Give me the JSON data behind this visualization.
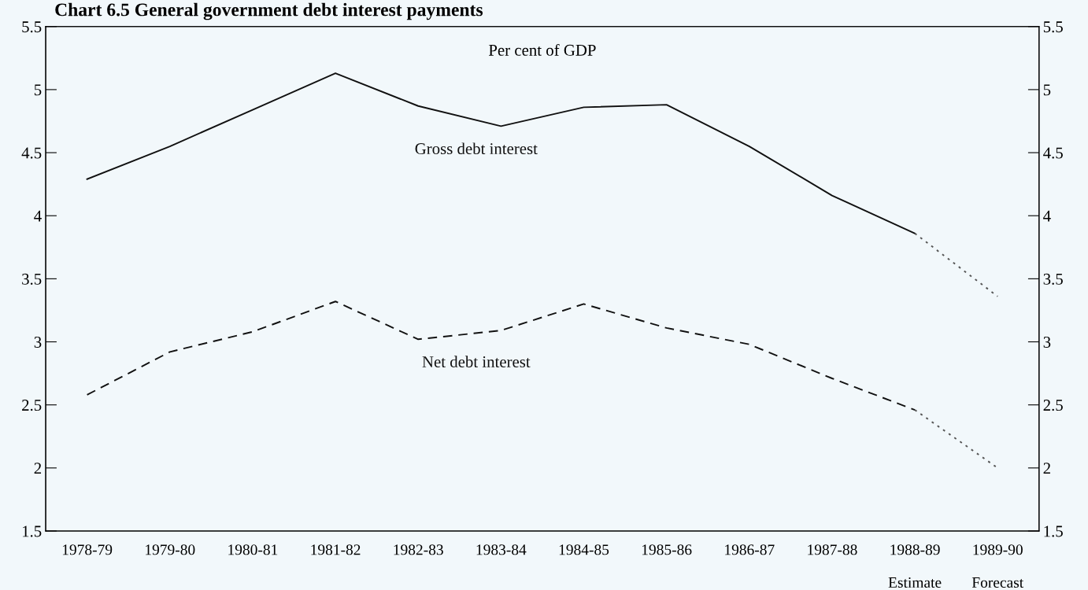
{
  "chart_data": {
    "type": "line",
    "title": "Chart 6.5 General government debt interest payments",
    "categories": [
      "1978-79",
      "1979-80",
      "1980-81",
      "1981-82",
      "1982-83",
      "1983-84",
      "1984-85",
      "1985-86",
      "1986-87",
      "1987-88",
      "1988-89",
      "1989-90"
    ],
    "series": [
      {
        "name": "Gross debt interest",
        "color": "#111111",
        "line_style": "solid",
        "values": [
          4.29,
          4.55,
          4.84,
          5.13,
          4.87,
          4.71,
          4.86,
          4.88,
          4.55,
          4.16,
          3.86,
          null
        ]
      },
      {
        "color": "#555555",
        "line_style": "dotted",
        "values": [
          null,
          null,
          null,
          null,
          null,
          null,
          null,
          null,
          null,
          null,
          3.86,
          3.36
        ]
      },
      {
        "name": "Net debt interest",
        "color": "#111111",
        "line_style": "dashed",
        "values": [
          2.58,
          2.92,
          3.08,
          3.32,
          3.02,
          3.09,
          3.3,
          3.11,
          2.98,
          2.71,
          2.46,
          null
        ]
      },
      {
        "color": "#555555",
        "line_style": "dotted",
        "values": [
          null,
          null,
          null,
          null,
          null,
          null,
          null,
          null,
          null,
          null,
          2.46,
          2.0
        ]
      }
    ],
    "ylim": [
      1.5,
      5.5
    ],
    "yticks": [
      1.5,
      2,
      2.5,
      3,
      3.5,
      4,
      4.5,
      5,
      5.5
    ],
    "y2lim": [
      1.5,
      5.5
    ],
    "y2ticks": [
      1.5,
      2,
      2.5,
      3,
      3.5,
      4,
      4.5,
      5,
      5.5
    ],
    "grid": false,
    "legend": false,
    "marker": "none",
    "annotations": [
      "Per cent of GDP",
      "Estimate",
      "Forecast"
    ]
  }
}
